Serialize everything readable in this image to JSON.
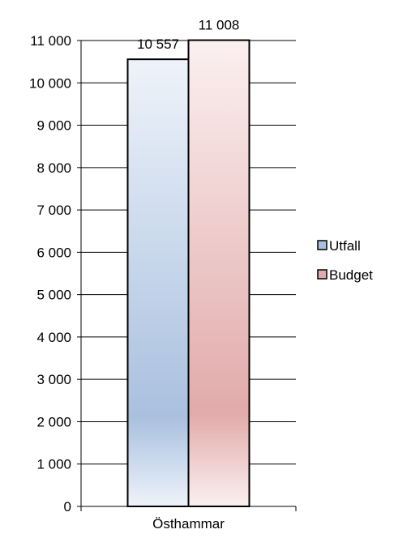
{
  "chart_data": {
    "type": "bar",
    "categories": [
      "Östhammar"
    ],
    "series": [
      {
        "name": "Utfall",
        "values": [
          10557
        ],
        "label": "10 557",
        "color_top": "#eef3fa",
        "color_mid": "#a9c0df"
      },
      {
        "name": "Budget",
        "values": [
          11008
        ],
        "label": "11 008",
        "color_top": "#fbf0f0",
        "color_mid": "#e2aaaa"
      }
    ],
    "ylim": [
      0,
      11000
    ],
    "yticks": [
      0,
      1000,
      2000,
      3000,
      4000,
      5000,
      6000,
      7000,
      8000,
      9000,
      10000,
      11000
    ],
    "ytick_labels": [
      "0",
      "1 000",
      "2 000",
      "3 000",
      "4 000",
      "5 000",
      "6 000",
      "7 000",
      "8 000",
      "9 000",
      "10 000",
      "11 000"
    ],
    "grid": true,
    "legend_position": "right",
    "title": "",
    "xlabel": "",
    "ylabel": ""
  }
}
